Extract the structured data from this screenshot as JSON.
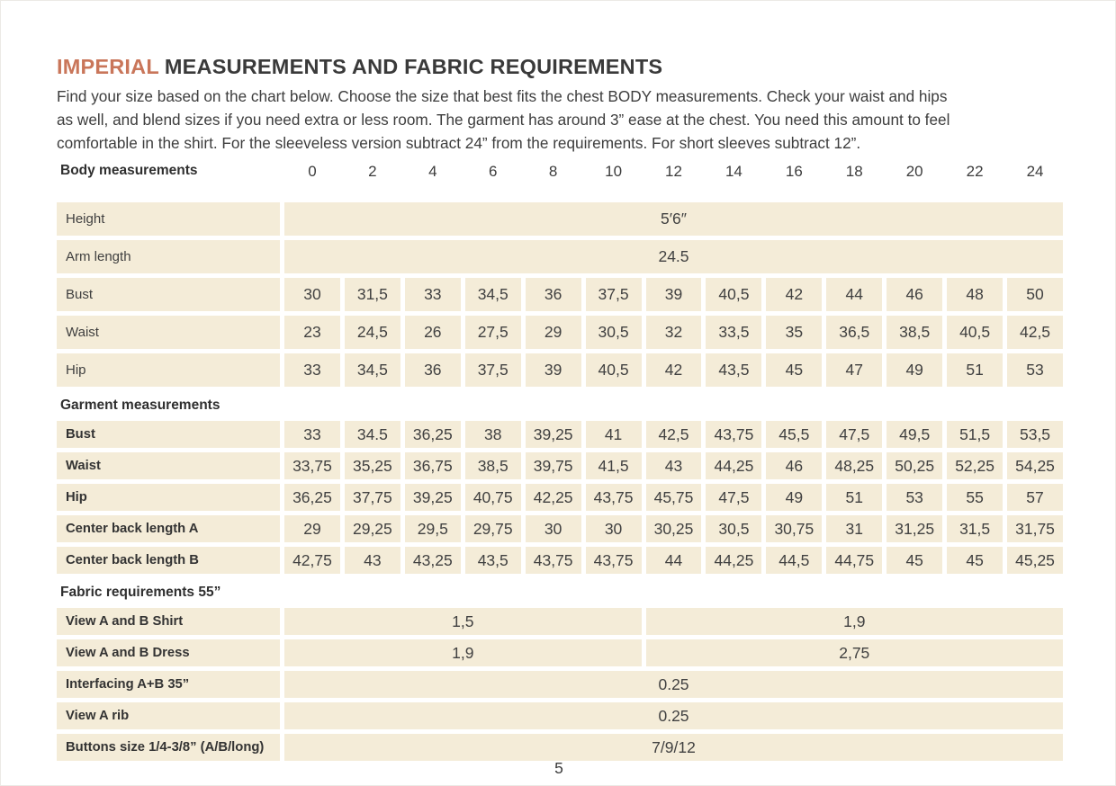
{
  "header": {
    "title_accent": "IMPERIAL",
    "title_rest": "MEASUREMENTS AND FABRIC REQUIREMENTS"
  },
  "intro_lines": [
    "Find your size based on the chart below. Choose the size that best fits the chest BODY measurements.  Check your waist and hips",
    "as well, and blend sizes if you need extra or less room. The garment has around 3” ease at the chest. You need this amount to feel",
    "comfortable in the shirt. For the sleeveless version subtract 24” from the requirements. For short sleeves subtract 12”."
  ],
  "colors": {
    "accent_title": "#c9765a",
    "cell_background": "#f4ecd8",
    "text": "#3d3d3d"
  },
  "table": {
    "sizes": [
      "0",
      "2",
      "4",
      "6",
      "8",
      "10",
      "12",
      "14",
      "16",
      "18",
      "20",
      "22",
      "24"
    ],
    "sections": [
      {
        "heading": "Body measurements",
        "rows": [
          {
            "label": "Height",
            "span": "5′6″"
          },
          {
            "label": "Arm length",
            "span": "24.5"
          },
          {
            "label": "Bust",
            "cells": [
              "30",
              "31,5",
              "33",
              "34,5",
              "36",
              "37,5",
              "39",
              "40,5",
              "42",
              "44",
              "46",
              "48",
              "50"
            ]
          },
          {
            "label": "Waist",
            "cells": [
              "23",
              "24,5",
              "26",
              "27,5",
              "29",
              "30,5",
              "32",
              "33,5",
              "35",
              "36,5",
              "38,5",
              "40,5",
              "42,5"
            ]
          },
          {
            "label": "Hip",
            "cells": [
              "33",
              "34,5",
              "36",
              "37,5",
              "39",
              "40,5",
              "42",
              "43,5",
              "45",
              "47",
              "49",
              "51",
              "53"
            ]
          }
        ]
      },
      {
        "heading": "Garment measurements",
        "rows": [
          {
            "label": "Bust",
            "cells": [
              "33",
              "34.5",
              "36,25",
              "38",
              "39,25",
              "41",
              "42,5",
              "43,75",
              "45,5",
              "47,5",
              "49,5",
              "51,5",
              "53,5"
            ]
          },
          {
            "label": "Waist",
            "cells": [
              "33,75",
              "35,25",
              "36,75",
              "38,5",
              "39,75",
              "41,5",
              "43",
              "44,25",
              "46",
              "48,25",
              "50,25",
              "52,25",
              "54,25"
            ]
          },
          {
            "label": "Hip",
            "cells": [
              "36,25",
              "37,75",
              "39,25",
              "40,75",
              "42,25",
              "43,75",
              "45,75",
              "47,5",
              "49",
              "51",
              "53",
              "55",
              "57"
            ]
          },
          {
            "label": "Center back length A",
            "cells": [
              "29",
              "29,25",
              "29,5",
              "29,75",
              "30",
              "30",
              "30,25",
              "30,5",
              "30,75",
              "31",
              "31,25",
              "31,5",
              "31,75"
            ]
          },
          {
            "label": "Center back length B",
            "cells": [
              "42,75",
              "43",
              "43,25",
              "43,5",
              "43,75",
              "43,75",
              "44",
              "44,25",
              "44,5",
              "44,75",
              "45",
              "45",
              "45,25"
            ]
          }
        ]
      },
      {
        "heading": "Fabric requirements 55”",
        "rows": [
          {
            "label": "View A and B Shirt",
            "split": [
              "1,5",
              "1,9"
            ]
          },
          {
            "label": "View A and B Dress",
            "split": [
              "1,9",
              "2,75"
            ]
          },
          {
            "label": "Interfacing  A+B 35”",
            "span": "0.25"
          },
          {
            "label": "View A rib",
            "span": "0.25"
          },
          {
            "label": "Buttons size 1/4-3/8” (A/B/long)",
            "span": "7/9/12"
          }
        ]
      }
    ]
  },
  "footer": {
    "page_number": "5"
  }
}
